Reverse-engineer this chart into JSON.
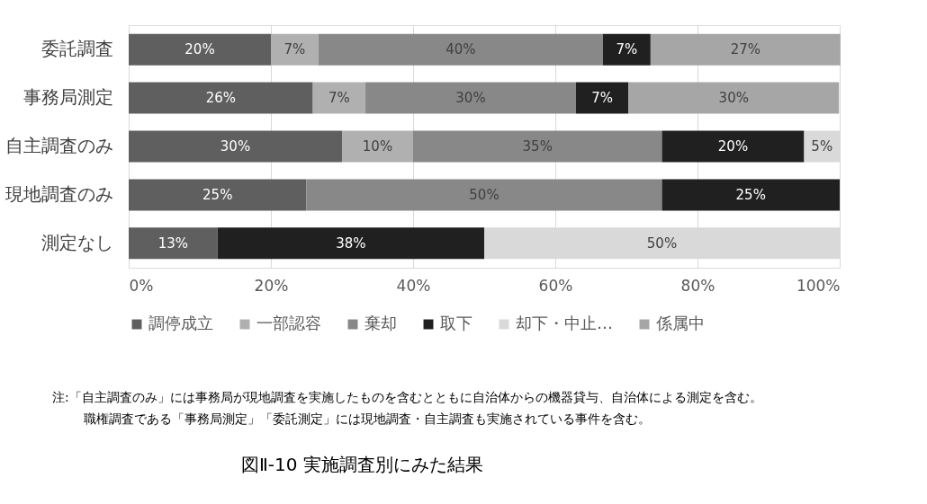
{
  "chart_data": {
    "type": "bar",
    "orientation": "horizontal",
    "stacked": true,
    "title": "図Ⅱ-10 実施調査別にみた結果",
    "categories": [
      "委託調査",
      "事務局測定",
      "自主調査のみ",
      "現地調査のみ",
      "測定なし"
    ],
    "series": [
      {
        "name": "調停成立",
        "color": "#5f5f5f",
        "values": [
          20,
          25.9,
          30,
          25,
          12.5
        ],
        "value_labels": [
          "20%",
          "26%",
          "30%",
          "25%",
          "13%"
        ]
      },
      {
        "name": "一部認容",
        "color": "#b0b0b0",
        "values": [
          6.7,
          7.4,
          10,
          null,
          null
        ],
        "value_labels": [
          "7%",
          "7%",
          "10%",
          null,
          null
        ]
      },
      {
        "name": "棄却",
        "color": "#888888",
        "values": [
          40,
          29.6,
          35,
          50,
          null
        ],
        "value_labels": [
          "40%",
          "30%",
          "35%",
          "50%",
          null
        ]
      },
      {
        "name": "取下",
        "color": "#202020",
        "values": [
          6.7,
          7.4,
          20,
          25,
          37.5
        ],
        "value_labels": [
          "7%",
          "7%",
          "20%",
          "25%",
          "38%"
        ]
      },
      {
        "name": "却下・中止…",
        "color": "#d9d9d9",
        "values": [
          null,
          null,
          5,
          null,
          50
        ],
        "value_labels": [
          null,
          null,
          "5%",
          null,
          "50%"
        ]
      },
      {
        "name": "係属中",
        "color": "#a6a6a6",
        "values": [
          26.7,
          29.6,
          null,
          null,
          null
        ],
        "value_labels": [
          "27%",
          "30%",
          null,
          null,
          null
        ]
      }
    ],
    "xlim": [
      0,
      100
    ],
    "xticks": [
      {
        "value": 0,
        "label": "0%"
      },
      {
        "value": 20,
        "label": "20%"
      },
      {
        "value": 40,
        "label": "40%"
      },
      {
        "value": 60,
        "label": "60%"
      },
      {
        "value": 80,
        "label": "80%"
      },
      {
        "value": 100,
        "label": "100%"
      }
    ],
    "grid": "x",
    "legend": "bottom",
    "annotations": [
      "注:「自主調査のみ」には事務局が現地調査を実施したものを含むとともに自治体からの機器貸与、自治体による測定を含む。",
      "職権調査である「事務局測定」「委託測定」には現地調査・自主調査も実施されている事件を含む。"
    ]
  }
}
